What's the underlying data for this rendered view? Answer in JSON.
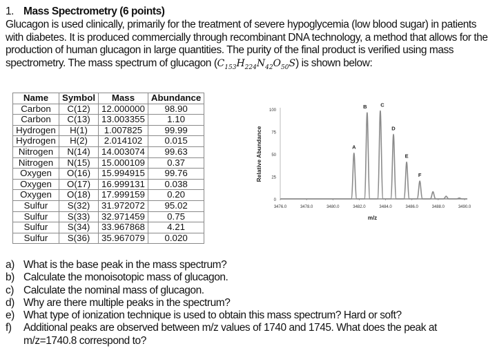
{
  "problem": {
    "number": "1.",
    "title": "Mass Spectrometry (6 points)",
    "intro": "Glucagon is used clinically, primarily for the treatment of severe hypoglycemia (low blood sugar) in patients with diabetes. It is produced commercially through recombinant DNA technology, a method that allows for the production of human glucagon in large quantities. The purity of the final product is verified using mass spectrometry. The mass spectrum of glucagon (",
    "intro_end": ") is shown below:",
    "formula": {
      "parts": [
        {
          "el": "C",
          "n": "153"
        },
        {
          "el": "H",
          "n": "224"
        },
        {
          "el": "N",
          "n": "42"
        },
        {
          "el": "O",
          "n": "50"
        },
        {
          "el": "S",
          "n": ""
        }
      ]
    }
  },
  "isotope_table": {
    "headers": [
      "Name",
      "Symbol",
      "Mass",
      "Abundance"
    ],
    "rows": [
      [
        "Carbon",
        "C(12)",
        "12.000000",
        "98.90"
      ],
      [
        "Carbon",
        "C(13)",
        "13.003355",
        "1.10"
      ],
      [
        "Hydrogen",
        "H(1)",
        "1.007825",
        "99.99"
      ],
      [
        "Hydrogen",
        "H(2)",
        "2.014102",
        "0.015"
      ],
      [
        "Nitrogen",
        "N(14)",
        "14.003074",
        "99.63"
      ],
      [
        "Nitrogen",
        "N(15)",
        "15.000109",
        "0.37"
      ],
      [
        "Oxygen",
        "O(16)",
        "15.994915",
        "99.76"
      ],
      [
        "Oxygen",
        "O(17)",
        "16.999131",
        "0.038"
      ],
      [
        "Oxygen",
        "O(18)",
        "17.999159",
        "0.20"
      ],
      [
        "Sulfur",
        "S(32)",
        "31.972072",
        "95.02"
      ],
      [
        "Sulfur",
        "S(33)",
        "32.971459",
        "0.75"
      ],
      [
        "Sulfur",
        "S(34)",
        "33.967868",
        "4.21"
      ],
      [
        "Sulfur",
        "S(36)",
        "35.967079",
        "0.020"
      ]
    ]
  },
  "chart_data": {
    "type": "line",
    "title": "",
    "xlabel": "m/z",
    "ylabel": "Relative Abundance",
    "xlim": [
      3476.0,
      3490.0
    ],
    "ylim": [
      0,
      100
    ],
    "xticks": [
      "3476.0",
      "3478.0",
      "3480.0",
      "3482.0",
      "3484.0",
      "3486.0",
      "3488.0",
      "3490.0"
    ],
    "yticks": [
      "0",
      "25",
      "50",
      "75",
      "100"
    ],
    "grid": false,
    "line_color": "#8a8a8a",
    "peaks": [
      {
        "label": "A",
        "mz": 3481.6,
        "intensity": 51
      },
      {
        "label": "B",
        "mz": 3482.6,
        "intensity": 96
      },
      {
        "label": "C",
        "mz": 3483.6,
        "intensity": 98
      },
      {
        "label": "D",
        "mz": 3484.6,
        "intensity": 72
      },
      {
        "label": "E",
        "mz": 3485.6,
        "intensity": 41
      },
      {
        "label": "F",
        "mz": 3486.6,
        "intensity": 20
      },
      {
        "label": "",
        "mz": 3487.6,
        "intensity": 8
      },
      {
        "label": "",
        "mz": 3488.6,
        "intensity": 3
      },
      {
        "label": "",
        "mz": 3489.6,
        "intensity": 1
      }
    ]
  },
  "questions": [
    {
      "label": "a)",
      "text": "What is the base peak in the mass spectrum?"
    },
    {
      "label": "b)",
      "text": "Calculate the monoisotopic mass of glucagon."
    },
    {
      "label": "c)",
      "text": "Calculate the nominal mass of glucagon."
    },
    {
      "label": "d)",
      "text": "Why are there multiple peaks in the spectrum?"
    },
    {
      "label": "e)",
      "text": "What type of ionization technique is used to obtain this mass spectrum? Hard or soft?"
    },
    {
      "label": "f)",
      "text": "Additional peaks are observed between m/z values of 1740 and 1745. What does the peak at m/z=1740.8 correspond to?"
    }
  ]
}
